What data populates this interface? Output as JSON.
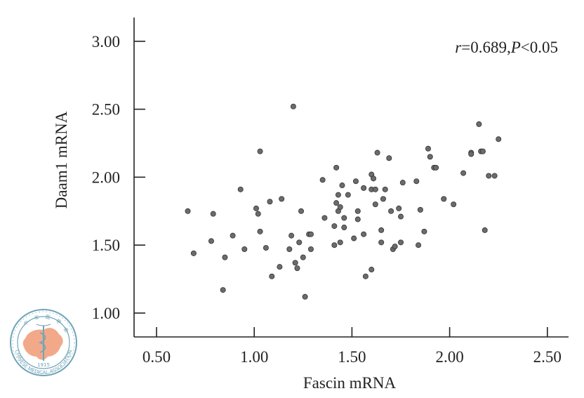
{
  "chart_data": {
    "type": "scatter",
    "xlabel": "Fascin mRNA",
    "ylabel": "Daam1 mRNA",
    "xlim": [
      0.4,
      2.6
    ],
    "ylim": [
      0.85,
      3.2
    ],
    "x_ticks": [
      "0.50",
      "1.00",
      "1.50",
      "2.00",
      "2.50"
    ],
    "x_tick_values": [
      0.5,
      1.0,
      1.5,
      2.0,
      2.5
    ],
    "y_ticks": [
      "1.00",
      "1.50",
      "2.00",
      "2.50",
      "3.00"
    ],
    "y_tick_values": [
      1.0,
      1.5,
      2.0,
      2.5,
      3.0
    ],
    "annotation": {
      "r_symbol": "r",
      "r_text": "=0.689,",
      "p_symbol": "P",
      "p_text": "<0.05"
    },
    "grid": false,
    "marker_color": "#6b6b6b",
    "marker_edge": "#333333",
    "points": [
      [
        0.66,
        1.75
      ],
      [
        0.69,
        1.44
      ],
      [
        0.78,
        1.53
      ],
      [
        0.79,
        1.73
      ],
      [
        0.84,
        1.17
      ],
      [
        0.85,
        1.41
      ],
      [
        0.89,
        1.57
      ],
      [
        0.93,
        1.91
      ],
      [
        0.95,
        1.47
      ],
      [
        1.01,
        1.77
      ],
      [
        1.02,
        1.73
      ],
      [
        1.03,
        2.19
      ],
      [
        1.03,
        1.6
      ],
      [
        1.06,
        1.48
      ],
      [
        1.08,
        1.82
      ],
      [
        1.09,
        1.27
      ],
      [
        1.13,
        1.34
      ],
      [
        1.14,
        1.84
      ],
      [
        1.18,
        1.47
      ],
      [
        1.19,
        1.57
      ],
      [
        1.2,
        2.52
      ],
      [
        1.21,
        1.37
      ],
      [
        1.22,
        1.33
      ],
      [
        1.23,
        1.52
      ],
      [
        1.24,
        1.75
      ],
      [
        1.25,
        1.41
      ],
      [
        1.26,
        1.12
      ],
      [
        1.28,
        1.58
      ],
      [
        1.29,
        1.58
      ],
      [
        1.29,
        1.47
      ],
      [
        1.35,
        1.98
      ],
      [
        1.36,
        1.7
      ],
      [
        1.41,
        1.64
      ],
      [
        1.41,
        1.5
      ],
      [
        1.42,
        2.07
      ],
      [
        1.42,
        1.81
      ],
      [
        1.43,
        1.87
      ],
      [
        1.43,
        1.75
      ],
      [
        1.44,
        1.78
      ],
      [
        1.44,
        1.52
      ],
      [
        1.45,
        1.94
      ],
      [
        1.46,
        1.7
      ],
      [
        1.46,
        1.63
      ],
      [
        1.48,
        1.87
      ],
      [
        1.51,
        1.55
      ],
      [
        1.52,
        1.97
      ],
      [
        1.53,
        1.75
      ],
      [
        1.53,
        1.69
      ],
      [
        1.56,
        1.92
      ],
      [
        1.56,
        1.58
      ],
      [
        1.57,
        1.27
      ],
      [
        1.6,
        2.02
      ],
      [
        1.6,
        1.91
      ],
      [
        1.6,
        1.32
      ],
      [
        1.61,
        1.99
      ],
      [
        1.62,
        1.8
      ],
      [
        1.62,
        1.91
      ],
      [
        1.63,
        2.18
      ],
      [
        1.65,
        1.61
      ],
      [
        1.65,
        1.52
      ],
      [
        1.66,
        1.84
      ],
      [
        1.67,
        1.91
      ],
      [
        1.69,
        2.14
      ],
      [
        1.7,
        1.75
      ],
      [
        1.71,
        1.47
      ],
      [
        1.72,
        1.49
      ],
      [
        1.74,
        1.77
      ],
      [
        1.75,
        1.52
      ],
      [
        1.75,
        1.71
      ],
      [
        1.76,
        1.96
      ],
      [
        1.83,
        1.97
      ],
      [
        1.84,
        1.5
      ],
      [
        1.85,
        1.76
      ],
      [
        1.87,
        1.6
      ],
      [
        1.89,
        2.21
      ],
      [
        1.9,
        2.15
      ],
      [
        1.92,
        2.07
      ],
      [
        1.93,
        2.07
      ],
      [
        1.97,
        1.84
      ],
      [
        2.02,
        1.8
      ],
      [
        2.07,
        2.03
      ],
      [
        2.11,
        2.18
      ],
      [
        2.11,
        2.17
      ],
      [
        2.15,
        2.39
      ],
      [
        2.16,
        2.19
      ],
      [
        2.17,
        2.19
      ],
      [
        2.18,
        1.61
      ],
      [
        2.2,
        2.01
      ],
      [
        2.23,
        2.01
      ],
      [
        2.25,
        2.28
      ]
    ]
  },
  "logo": {
    "name": "Chinese Medical Association seal",
    "top_text": "中华医学会",
    "ring_text": "CHINESE MEDICAL ASSOCIATION",
    "year": "1915",
    "colors": {
      "ring": "#6fa5b8",
      "map": "#f2a98a"
    }
  }
}
